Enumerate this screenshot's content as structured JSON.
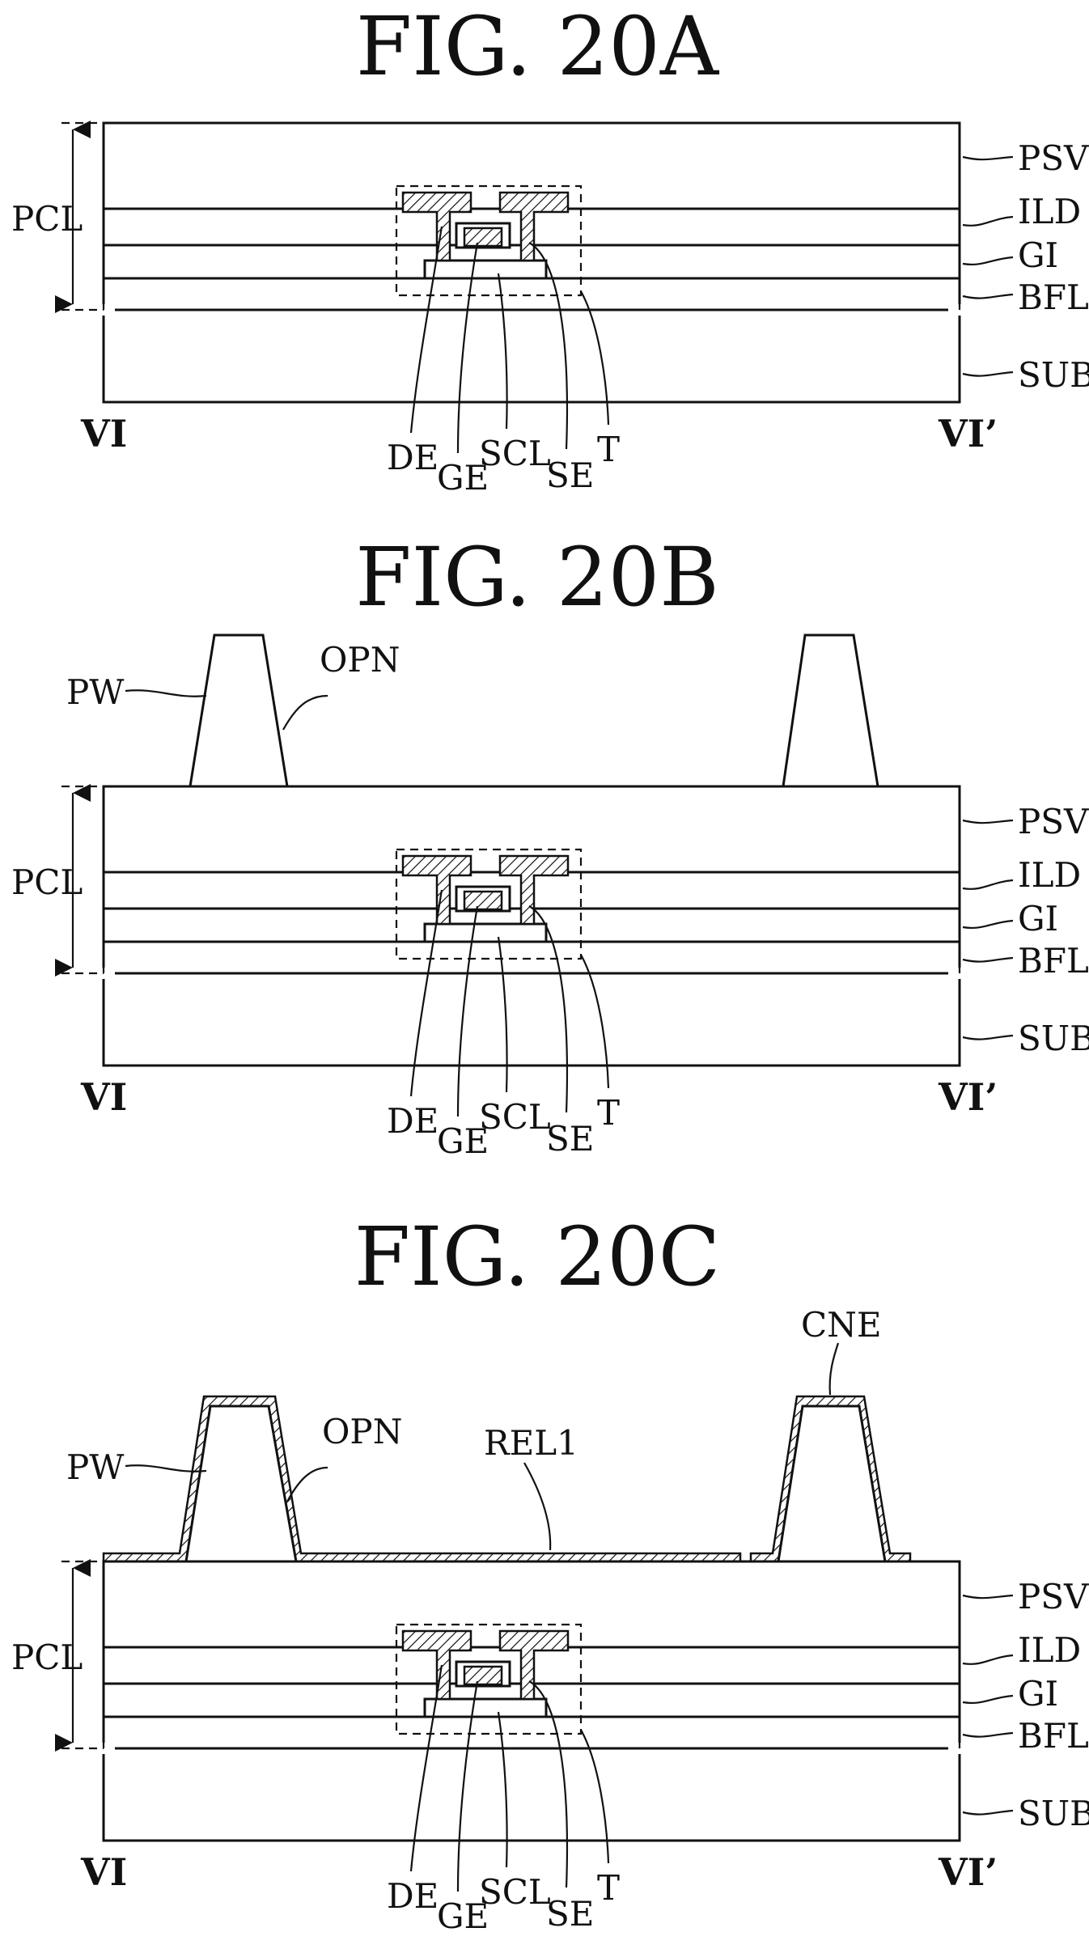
{
  "figures": [
    {
      "id": "20a",
      "title": "FIG. 20A",
      "labels": {
        "pcl": "PCL",
        "psv": "PSV",
        "ild": "ILD",
        "gi": "GI",
        "bfl": "BFL",
        "sub": "SUB",
        "vi_left": "VI",
        "vi_right": "VI’",
        "de": "DE",
        "ge": "GE",
        "scl": "SCL",
        "se": "SE",
        "t": "T"
      }
    },
    {
      "id": "20b",
      "title": "FIG. 20B",
      "labels": {
        "pw": "PW",
        "opn": "OPN",
        "pcl": "PCL",
        "psv": "PSV",
        "ild": "ILD",
        "gi": "GI",
        "bfl": "BFL",
        "sub": "SUB",
        "vi_left": "VI",
        "vi_right": "VI’",
        "de": "DE",
        "ge": "GE",
        "scl": "SCL",
        "se": "SE",
        "t": "T"
      }
    },
    {
      "id": "20c",
      "title": "FIG. 20C",
      "labels": {
        "pw": "PW",
        "opn": "OPN",
        "rel1": "REL1",
        "cne": "CNE",
        "pcl": "PCL",
        "psv": "PSV",
        "ild": "ILD",
        "gi": "GI",
        "bfl": "BFL",
        "sub": "SUB",
        "vi_left": "VI",
        "vi_right": "VI’",
        "de": "DE",
        "ge": "GE",
        "scl": "SCL",
        "se": "SE",
        "t": "T"
      }
    }
  ]
}
